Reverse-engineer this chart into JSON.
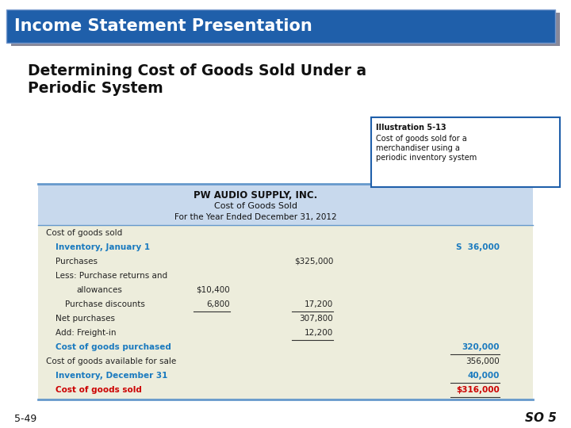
{
  "title_banner": "Income Statement Presentation",
  "subtitle_line1": "Determining Cost of Goods Sold Under a",
  "subtitle_line2": "Periodic System",
  "illus_title": "Illustration 5-13",
  "illus_line1": "Cost of goods sold for a",
  "illus_line2": "merchandiser using a",
  "illus_line3": "periodic inventory system",
  "company_name": "PW AUDIO SUPPLY, INC.",
  "report_title": "Cost of Goods Sold",
  "report_period": "For the Year Ended December 31, 2012",
  "rows": [
    {
      "label": "Cost of goods sold",
      "col1": "",
      "col2": "",
      "col3": "",
      "indent": 0,
      "color": "#222222",
      "bold": false
    },
    {
      "label": "Inventory, January 1",
      "col1": "",
      "col2": "",
      "col3": "S  36,000",
      "indent": 1,
      "color": "#1a7abf",
      "bold": true
    },
    {
      "label": "Purchases",
      "col1": "",
      "col2": "$325,000",
      "col3": "",
      "indent": 1,
      "color": "#222222",
      "bold": false
    },
    {
      "label": "Less: Purchase returns and",
      "col1": "",
      "col2": "",
      "col3": "",
      "indent": 1,
      "color": "#222222",
      "bold": false
    },
    {
      "label": "allowances",
      "col1": "$10,400",
      "col2": "",
      "col3": "",
      "indent": 3,
      "color": "#222222",
      "bold": false
    },
    {
      "label": "Purchase discounts",
      "col1": "6,800",
      "col2": "17,200",
      "col3": "",
      "indent": 2,
      "color": "#222222",
      "bold": false,
      "ul1": true,
      "ul2": true
    },
    {
      "label": "Net purchases",
      "col1": "",
      "col2": "307,800",
      "col3": "",
      "indent": 1,
      "color": "#222222",
      "bold": false
    },
    {
      "label": "Add: Freight-in",
      "col1": "",
      "col2": "12,200",
      "col3": "",
      "indent": 1,
      "color": "#222222",
      "bold": false,
      "ul2": true
    },
    {
      "label": "Cost of goods purchased",
      "col1": "",
      "col2": "",
      "col3": "320,000",
      "indent": 1,
      "color": "#1a7abf",
      "bold": true,
      "ul3": true
    },
    {
      "label": "Cost of goods available for sale",
      "col1": "",
      "col2": "",
      "col3": "356,000",
      "indent": 0,
      "color": "#222222",
      "bold": false
    },
    {
      "label": "Inventory, December 31",
      "col1": "",
      "col2": "",
      "col3": "40,000",
      "indent": 1,
      "color": "#1a7abf",
      "bold": true,
      "ul3": true
    },
    {
      "label": "Cost of goods sold",
      "col1": "",
      "col2": "",
      "col3": "$316,000",
      "indent": 1,
      "color": "#cc0000",
      "bold": true,
      "dul3": true
    }
  ],
  "footer_left": "5-49",
  "footer_right": "SO 5",
  "bg_color": "#ffffff",
  "banner_color": "#1f5faa",
  "banner_shadow_color": "#888899",
  "table_header_bg": "#c8d9ed",
  "table_body_bg": "#ededdc",
  "illus_border_color": "#1f5faa"
}
